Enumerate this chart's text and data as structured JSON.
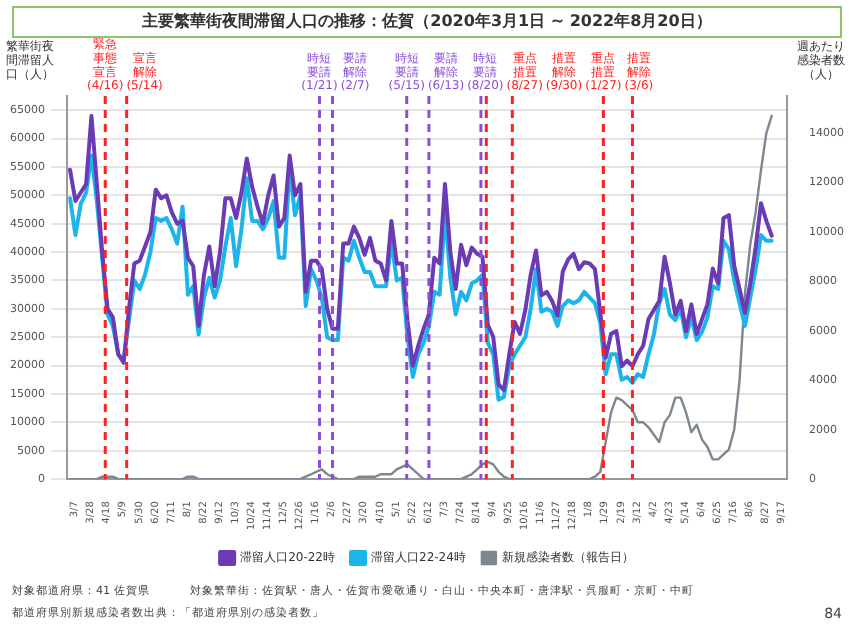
{
  "chart_data": {
    "type": "line",
    "title": "主要繁華街夜間滞留人口の推移：佐賀（2020年3月1日 ~ 2022年8月20日）",
    "ylabel": "繁華街夜間滞留人口（人）",
    "y2label": "週あたり感染者数（人）",
    "x": [
      "2020-03-01",
      "2020-03-08",
      "2020-03-15",
      "2020-03-22",
      "2020-03-29",
      "2020-04-05",
      "2020-04-12",
      "2020-04-19",
      "2020-04-26",
      "2020-05-03",
      "2020-05-10",
      "2020-05-17",
      "2020-05-24",
      "2020-05-31",
      "2020-06-07",
      "2020-06-14",
      "2020-06-21",
      "2020-06-28",
      "2020-07-05",
      "2020-07-12",
      "2020-07-19",
      "2020-07-26",
      "2020-08-02",
      "2020-08-09",
      "2020-08-16",
      "2020-08-23",
      "2020-08-30",
      "2020-09-06",
      "2020-09-13",
      "2020-09-20",
      "2020-09-27",
      "2020-10-04",
      "2020-10-11",
      "2020-10-18",
      "2020-10-25",
      "2020-11-01",
      "2020-11-08",
      "2020-11-15",
      "2020-11-22",
      "2020-11-29",
      "2020-12-06",
      "2020-12-13",
      "2020-12-20",
      "2020-12-27",
      "2021-01-03",
      "2021-01-10",
      "2021-01-17",
      "2021-01-24",
      "2021-01-31",
      "2021-02-07",
      "2021-02-14",
      "2021-02-21",
      "2021-02-28",
      "2021-03-07",
      "2021-03-14",
      "2021-03-21",
      "2021-03-28",
      "2021-04-04",
      "2021-04-11",
      "2021-04-18",
      "2021-04-25",
      "2021-05-02",
      "2021-05-09",
      "2021-05-16",
      "2021-05-23",
      "2021-05-30",
      "2021-06-06",
      "2021-06-13",
      "2021-06-20",
      "2021-06-27",
      "2021-07-04",
      "2021-07-11",
      "2021-07-18",
      "2021-07-25",
      "2021-08-01",
      "2021-08-08",
      "2021-08-15",
      "2021-08-22",
      "2021-08-29",
      "2021-09-05",
      "2021-09-12",
      "2021-09-19",
      "2021-09-26",
      "2021-10-03",
      "2021-10-10",
      "2021-10-17",
      "2021-10-24",
      "2021-10-31",
      "2021-11-07",
      "2021-11-14",
      "2021-11-21",
      "2021-11-28",
      "2021-12-05",
      "2021-12-12",
      "2021-12-19",
      "2021-12-26",
      "2022-01-02",
      "2022-01-09",
      "2022-01-16",
      "2022-01-23",
      "2022-01-30",
      "2022-02-06",
      "2022-02-13",
      "2022-02-20",
      "2022-02-27",
      "2022-03-06",
      "2022-03-13",
      "2022-03-20",
      "2022-03-27",
      "2022-04-03",
      "2022-04-10",
      "2022-04-17",
      "2022-04-24",
      "2022-05-01",
      "2022-05-08",
      "2022-05-15",
      "2022-05-22",
      "2022-05-29",
      "2022-06-05",
      "2022-06-12",
      "2022-06-19",
      "2022-06-26",
      "2022-07-03",
      "2022-07-10",
      "2022-07-17",
      "2022-07-24",
      "2022-07-31",
      "2022-08-07",
      "2022-08-14",
      "2022-08-21",
      "2022-08-28",
      "2022-09-04"
    ],
    "series": [
      {
        "name": "滞留人口20-22時",
        "color": "#6a3bb5",
        "values": [
          54500,
          49000,
          50500,
          52000,
          64000,
          52000,
          40000,
          30000,
          28500,
          22000,
          20500,
          30000,
          38000,
          38500,
          41000,
          43500,
          51000,
          49500,
          50000,
          47000,
          45000,
          45500,
          39000,
          37500,
          27000,
          36000,
          41000,
          34000,
          40000,
          49500,
          49500,
          46000,
          50500,
          56500,
          51500,
          48000,
          45000,
          50000,
          53500,
          44500,
          46000,
          57000,
          50000,
          52000,
          33000,
          38500,
          38500,
          37000,
          30000,
          26500,
          26500,
          41500,
          41500,
          44500,
          42500,
          39500,
          42500,
          38500,
          38000,
          35000,
          45500,
          38000,
          38000,
          28000,
          20000,
          23500,
          26500,
          29000,
          39000,
          38000,
          52000,
          40000,
          33500,
          41300,
          37700,
          40800,
          39700,
          39200,
          27200,
          25100,
          16700,
          15700,
          22000,
          27700,
          25600,
          29800,
          36000,
          40300,
          32400,
          33000,
          31400,
          28800,
          36600,
          38700,
          39700,
          37000,
          38200,
          38000,
          37000,
          29300,
          21400,
          25600,
          26100,
          19900,
          20900,
          19900,
          22000,
          23500,
          28200,
          29800,
          31400,
          39200,
          34500,
          29000,
          31400,
          26100,
          30800,
          25600,
          28200,
          30800,
          37100,
          34500,
          46000,
          46500,
          37600,
          33500,
          29300,
          34500,
          40800,
          48600,
          45500,
          42900
        ]
      },
      {
        "name": "滞留人口22-24時",
        "color": "#1db4ea",
        "values": [
          49500,
          43000,
          48500,
          50500,
          57000,
          49000,
          39000,
          29000,
          27000,
          22000,
          21000,
          28000,
          35000,
          33500,
          36000,
          40000,
          46000,
          45500,
          46000,
          44000,
          41500,
          48000,
          32500,
          34000,
          25500,
          32000,
          35500,
          32000,
          35000,
          41000,
          46000,
          37500,
          44000,
          53000,
          45500,
          45500,
          44000,
          46000,
          49000,
          39000,
          39000,
          55000,
          46500,
          50000,
          30500,
          37000,
          35000,
          32000,
          25000,
          24500,
          24500,
          39000,
          38500,
          42000,
          39000,
          36500,
          36500,
          34000,
          34000,
          34000,
          42000,
          35000,
          35500,
          25000,
          18000,
          22000,
          24000,
          27000,
          33000,
          32500,
          47000,
          35500,
          29000,
          33000,
          31500,
          34500,
          35000,
          36000,
          24000,
          22000,
          14000,
          14500,
          20000,
          22000,
          23500,
          25000,
          30000,
          37000,
          29500,
          30000,
          29500,
          27000,
          30500,
          31500,
          31000,
          31500,
          33000,
          32000,
          31000,
          27500,
          18500,
          22000,
          22000,
          17500,
          18000,
          17000,
          18500,
          18000,
          22000,
          25500,
          31000,
          33500,
          29000,
          28000,
          30000,
          25000,
          28500,
          24500,
          26000,
          28500,
          34000,
          33500,
          42000,
          40500,
          35000,
          31000,
          27000,
          32000,
          37000,
          43000,
          42000,
          42000
        ]
      },
      {
        "name": "新規感染者数（報告日）",
        "color": "#7d8792",
        "axis": "y2",
        "values": [
          0,
          0,
          0,
          0,
          0,
          0,
          100,
          100,
          100,
          0,
          0,
          0,
          0,
          0,
          0,
          0,
          0,
          0,
          0,
          0,
          0,
          0,
          100,
          100,
          0,
          0,
          0,
          0,
          0,
          0,
          0,
          0,
          0,
          0,
          0,
          0,
          0,
          0,
          0,
          0,
          0,
          0,
          0,
          0,
          100,
          200,
          300,
          400,
          200,
          100,
          0,
          0,
          0,
          0,
          100,
          100,
          100,
          100,
          200,
          200,
          200,
          400,
          500,
          600,
          400,
          200,
          0,
          0,
          0,
          0,
          0,
          0,
          0,
          0,
          100,
          200,
          400,
          600,
          700,
          600,
          300,
          100,
          0,
          0,
          0,
          0,
          0,
          0,
          0,
          0,
          0,
          0,
          0,
          0,
          0,
          0,
          0,
          0,
          100,
          300,
          1500,
          2700,
          3300,
          3200,
          3000,
          2800,
          2300,
          2300,
          2100,
          1800,
          1500,
          2300,
          2600,
          3300,
          3300,
          2700,
          1900,
          2200,
          1600,
          1300,
          800,
          800,
          1000,
          1200,
          2000,
          4000,
          7500,
          9500,
          10800,
          12500,
          14000,
          14700
        ]
      }
    ],
    "xlim": [
      "2020-02-26",
      "2022-09-24"
    ],
    "xticks": [
      {
        "value": "2020-03-07",
        "label": "3/7"
      },
      {
        "value": "2020-03-28",
        "label": "3/28"
      },
      {
        "value": "2020-04-18",
        "label": "4/18"
      },
      {
        "value": "2020-05-09",
        "label": "5/9"
      },
      {
        "value": "2020-05-30",
        "label": "5/30"
      },
      {
        "value": "2020-06-20",
        "label": "6/20"
      },
      {
        "value": "2020-07-11",
        "label": "7/11"
      },
      {
        "value": "2020-08-01",
        "label": "8/1"
      },
      {
        "value": "2020-08-22",
        "label": "8/22"
      },
      {
        "value": "2020-09-12",
        "label": "9/12"
      },
      {
        "value": "2020-10-03",
        "label": "10/3"
      },
      {
        "value": "2020-10-24",
        "label": "10/24"
      },
      {
        "value": "2020-11-14",
        "label": "11/14"
      },
      {
        "value": "2020-12-05",
        "label": "12/5"
      },
      {
        "value": "2020-12-26",
        "label": "12/26"
      },
      {
        "value": "2021-01-16",
        "label": "1/16"
      },
      {
        "value": "2021-02-06",
        "label": "2/6"
      },
      {
        "value": "2021-02-27",
        "label": "2/27"
      },
      {
        "value": "2021-03-20",
        "label": "3/20"
      },
      {
        "value": "2021-04-10",
        "label": "4/10"
      },
      {
        "value": "2021-05-01",
        "label": "5/1"
      },
      {
        "value": "2021-05-22",
        "label": "5/22"
      },
      {
        "value": "2021-06-12",
        "label": "6/12"
      },
      {
        "value": "2021-07-03",
        "label": "7/3"
      },
      {
        "value": "2021-07-24",
        "label": "7/24"
      },
      {
        "value": "2021-08-14",
        "label": "8/14"
      },
      {
        "value": "2021-09-04",
        "label": "9/4"
      },
      {
        "value": "2021-09-25",
        "label": "9/25"
      },
      {
        "value": "2021-10-16",
        "label": "10/16"
      },
      {
        "value": "2021-11-06",
        "label": "11/6"
      },
      {
        "value": "2021-11-27",
        "label": "11/27"
      },
      {
        "value": "2021-12-18",
        "label": "12/18"
      },
      {
        "value": "2022-01-08",
        "label": "1/8"
      },
      {
        "value": "2022-01-29",
        "label": "1/29"
      },
      {
        "value": "2022-02-19",
        "label": "2/19"
      },
      {
        "value": "2022-03-12",
        "label": "3/12"
      },
      {
        "value": "2022-04-02",
        "label": "4/2"
      },
      {
        "value": "2022-04-23",
        "label": "4/23"
      },
      {
        "value": "2022-05-14",
        "label": "5/14"
      },
      {
        "value": "2022-06-04",
        "label": "6/4"
      },
      {
        "value": "2022-06-25",
        "label": "6/25"
      },
      {
        "value": "2022-07-16",
        "label": "7/16"
      },
      {
        "value": "2022-08-06",
        "label": "8/6"
      },
      {
        "value": "2022-08-27",
        "label": "8/27"
      },
      {
        "value": "2022-09-17",
        "label": "9/17"
      }
    ],
    "ylim": [
      0,
      67500
    ],
    "yticks": [
      0,
      5000,
      10000,
      15000,
      20000,
      25000,
      30000,
      35000,
      40000,
      45000,
      50000,
      55000,
      60000,
      65000
    ],
    "y2lim": [
      0,
      15500
    ],
    "y2ticks": [
      0,
      2000,
      4000,
      6000,
      8000,
      10000,
      12000,
      14000
    ],
    "ref_lines": [
      {
        "axis": "x",
        "value": "2020-04-16",
        "label": "緊急事態宣言(4/16)",
        "color": "#ff2020",
        "line_style": "dashed"
      },
      {
        "axis": "x",
        "value": "2020-05-14",
        "label": "宣言解除(5/14)",
        "color": "#ff2020",
        "line_style": "dashed"
      },
      {
        "axis": "x",
        "value": "2021-01-21",
        "label": "時短要請(1/21)",
        "color": "#8a4fd6",
        "line_style": "dashed"
      },
      {
        "axis": "x",
        "value": "2021-02-07",
        "label": "要請解除(2/7)",
        "color": "#8a4fd6",
        "line_style": "dashed"
      },
      {
        "axis": "x",
        "value": "2021-05-15",
        "label": "時短要請(5/15)",
        "color": "#8a4fd6",
        "line_style": "dashed"
      },
      {
        "axis": "x",
        "value": "2021-06-13",
        "label": "要請解除(6/13)",
        "color": "#8a4fd6",
        "line_style": "dashed"
      },
      {
        "axis": "x",
        "value": "2021-08-20",
        "label": "時短要請(8/20)",
        "color": "#8a4fd6",
        "line_style": "dashed"
      },
      {
        "axis": "x",
        "value": "2021-08-27",
        "label": "重点措置(8/27)",
        "color": "#ff2020",
        "line_style": "dashed"
      },
      {
        "axis": "x",
        "value": "2021-09-30",
        "label": "措置解除(9/30)",
        "color": "#ff2020",
        "line_style": "dashed"
      },
      {
        "axis": "x",
        "value": "2022-01-27",
        "label": "重点措置(1/27)",
        "color": "#ff2020",
        "line_style": "dashed"
      },
      {
        "axis": "x",
        "value": "2022-03-06",
        "label": "措置解除(3/6)",
        "color": "#ff2020",
        "line_style": "dashed"
      }
    ],
    "annotations": [
      "対象都道府県：41 佐賀県",
      "対象繁華街：佐賀駅・唐人・佐賀市愛敬通り・白山・中央本町・唐津駅・呉服町・京町・中町",
      "都道府県別新規感染者数出典：「都道府県別の感染者数」",
      "84"
    ],
    "legend": "bottom",
    "grid": "y",
    "marker": "none",
    "line_style": "solid"
  }
}
